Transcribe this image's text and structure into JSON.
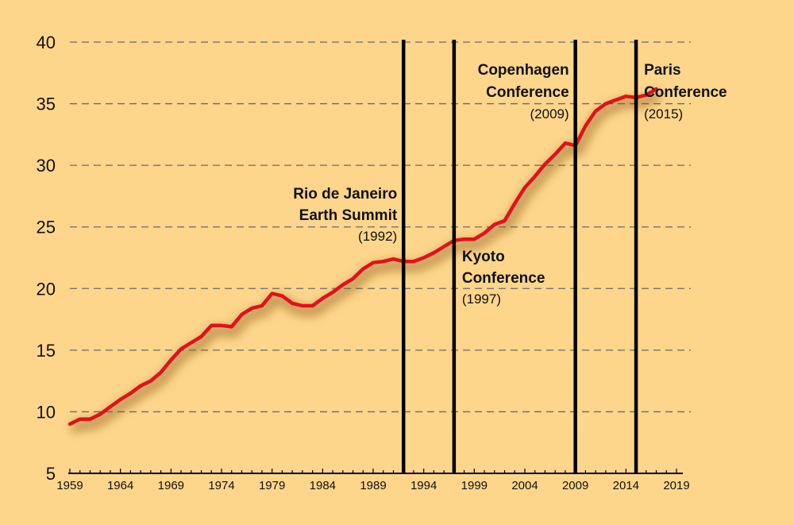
{
  "chart_data": {
    "type": "line",
    "title": "",
    "xlabel": "",
    "ylabel": "",
    "xlim": [
      1959,
      2019
    ],
    "ylim": [
      5,
      40
    ],
    "yticks": [
      5,
      10,
      15,
      20,
      25,
      30,
      35,
      40
    ],
    "xticks": [
      1959,
      1964,
      1969,
      1974,
      1979,
      1984,
      1989,
      1994,
      1999,
      2004,
      2009,
      2014,
      2019
    ],
    "grid": "horizontal dashed",
    "colors": {
      "background": "#fdd68c",
      "line": "#e3101a",
      "shadow": "#8a5a1a",
      "grid": "#6a6a6a",
      "markers": "#000000"
    },
    "series": [
      {
        "x": [
          1959,
          1960,
          1961,
          1962,
          1963,
          1964,
          1965,
          1966,
          1967,
          1968,
          1969,
          1970,
          1971,
          1972,
          1973,
          1974,
          1975,
          1976,
          1977,
          1978,
          1979,
          1980,
          1981,
          1982,
          1983,
          1984,
          1985,
          1986,
          1987,
          1988,
          1989,
          1990,
          1991,
          1992,
          1993,
          1994,
          1995,
          1996,
          1997,
          1998,
          1999,
          2000,
          2001,
          2002,
          2003,
          2004,
          2005,
          2006,
          2007,
          2008,
          2009,
          2010,
          2011,
          2012,
          2013,
          2014,
          2015,
          2016,
          2017
        ],
        "values": [
          9.0,
          9.4,
          9.4,
          9.8,
          10.4,
          11.0,
          11.5,
          12.1,
          12.5,
          13.2,
          14.2,
          15.1,
          15.6,
          16.1,
          17.0,
          17.0,
          16.9,
          17.9,
          18.4,
          18.6,
          19.6,
          19.4,
          18.8,
          18.6,
          18.6,
          19.2,
          19.7,
          20.3,
          20.8,
          21.6,
          22.1,
          22.2,
          22.4,
          22.2,
          22.2,
          22.5,
          22.9,
          23.4,
          23.9,
          24.0,
          24.0,
          24.5,
          25.2,
          25.5,
          26.9,
          28.2,
          29.1,
          30.1,
          30.9,
          31.8,
          31.6,
          33.2,
          34.4,
          35.0,
          35.3,
          35.6,
          35.5,
          35.7,
          36.2
        ]
      }
    ],
    "events": [
      {
        "year": 1992,
        "lines": [
          "Rio de Janeiro",
          "Earth Summit"
        ],
        "year_label": "(1992)",
        "anchor": "end"
      },
      {
        "year": 1997,
        "lines": [
          "Kyoto",
          "Conference"
        ],
        "year_label": "(1997)",
        "anchor": "start"
      },
      {
        "year": 2009,
        "lines": [
          "Copenhagen",
          "Conference"
        ],
        "year_label": "(2009)",
        "anchor": "end"
      },
      {
        "year": 2015,
        "lines": [
          "Paris",
          "Conference"
        ],
        "year_label": "(2015)",
        "anchor": "start"
      }
    ]
  }
}
